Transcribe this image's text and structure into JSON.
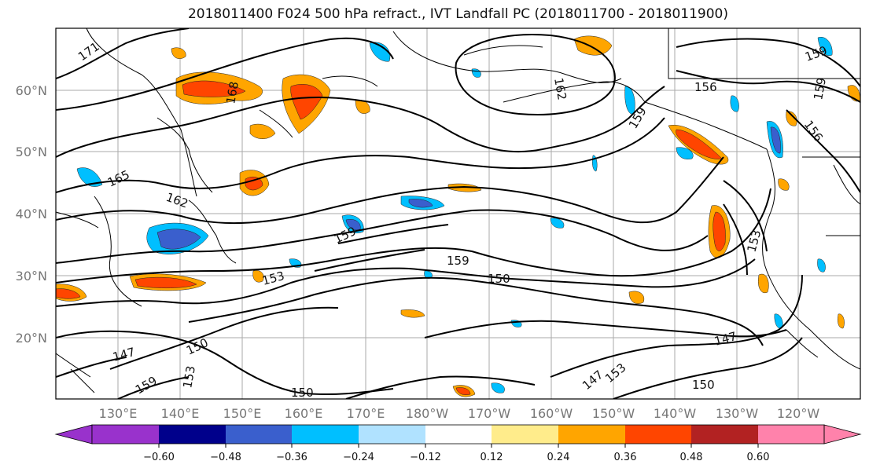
{
  "title": "2018011400 F024 500 hPa refract., IVT Landfall PC (2018011700 - 2018011900)",
  "lat_labels": [
    "60°N",
    "50°N",
    "40°N",
    "30°N",
    "20°N"
  ],
  "lon_labels": [
    "130°E",
    "140°E",
    "150°E",
    "160°E",
    "170°E",
    "180°W",
    "170°W",
    "160°W",
    "150°W",
    "140°W",
    "130°W",
    "120°W"
  ],
  "contour_labels": [
    "171",
    "168",
    "165",
    "162",
    "162",
    "159",
    "159",
    "159",
    "156",
    "156",
    "159",
    "159",
    "153",
    "150",
    "147",
    "150",
    "153",
    "159",
    "147",
    "153",
    "150",
    "147",
    "153",
    "150"
  ],
  "colorbar": {
    "ticks": [
      "−0.60",
      "−0.48",
      "−0.36",
      "−0.24",
      "−0.12",
      "0.12",
      "0.24",
      "0.36",
      "0.48",
      "0.60"
    ],
    "colors": [
      "#9932cc",
      "#00008b",
      "#3a5fcd",
      "#00bfff",
      "#b0e2ff",
      "#ffffff",
      "#ffec8b",
      "#ffa500",
      "#ff4500",
      "#b22222",
      "#ff82ab"
    ]
  }
}
